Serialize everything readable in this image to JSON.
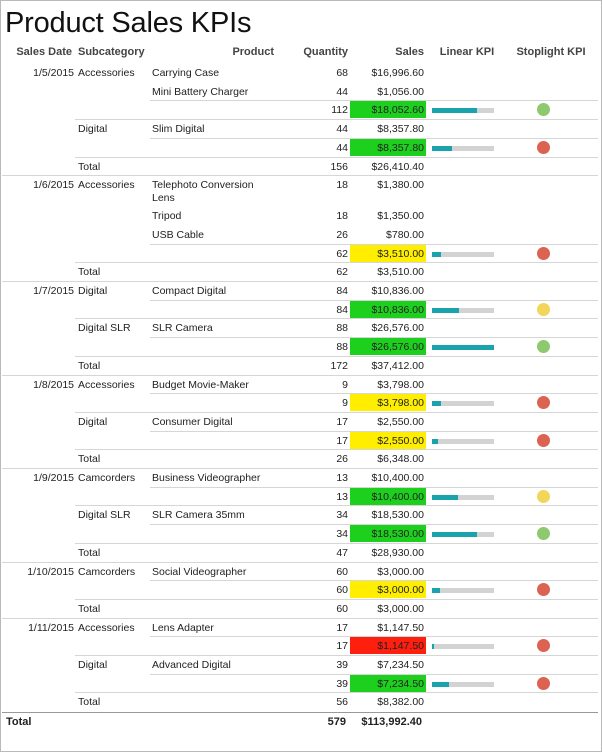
{
  "title": "Product Sales KPIs",
  "headers": {
    "sales_date": "Sales Date",
    "subcategory": "Subcategory",
    "product": "Product",
    "quantity": "Quantity",
    "sales": "Sales",
    "linear_kpi": "Linear KPI",
    "stoplight_kpi": "Stoplight KPI"
  },
  "colors": {
    "kpi_green_bg": "#1ed01e",
    "kpi_yellow_bg": "#ffee00",
    "kpi_red_bg": "#ff1f0f",
    "bar_fill": "#1aa3ad",
    "bar_track": "#d3d3d3",
    "light_green": "#8fc96f",
    "light_yellow": "#f2d65a",
    "light_red": "#dc6352"
  },
  "rows": [
    {
      "type": "product",
      "date": "1/5/2015",
      "subcategory": "Accessories",
      "product": "Carrying Case",
      "quantity": "68",
      "sales": "$16,996.60"
    },
    {
      "type": "product",
      "product": "Mini Battery Charger",
      "quantity": "44",
      "sales": "$1,056.00"
    },
    {
      "type": "subtotal",
      "quantity": "112",
      "sales": "$18,052.60",
      "status": "green",
      "kpi": 0.72,
      "light": "green"
    },
    {
      "type": "product",
      "subcategory": "Digital",
      "product": "Slim Digital",
      "quantity": "44",
      "sales": "$8,357.80"
    },
    {
      "type": "subtotal",
      "quantity": "44",
      "sales": "$8,357.80",
      "status": "green",
      "kpi": 0.33,
      "light": "red"
    },
    {
      "type": "total",
      "label": "Total",
      "quantity": "156",
      "sales": "$26,410.40"
    },
    {
      "type": "product",
      "date": "1/6/2015",
      "subcategory": "Accessories",
      "product": "Telephoto Conversion Lens",
      "quantity": "18",
      "sales": "$1,380.00",
      "tall": true
    },
    {
      "type": "product",
      "product": "Tripod",
      "quantity": "18",
      "sales": "$1,350.00"
    },
    {
      "type": "product",
      "product": "USB Cable",
      "quantity": "26",
      "sales": "$780.00"
    },
    {
      "type": "subtotal",
      "quantity": "62",
      "sales": "$3,510.00",
      "status": "yellow",
      "kpi": 0.14,
      "light": "red"
    },
    {
      "type": "total",
      "label": "Total",
      "quantity": "62",
      "sales": "$3,510.00"
    },
    {
      "type": "product",
      "date": "1/7/2015",
      "subcategory": "Digital",
      "product": "Compact Digital",
      "quantity": "84",
      "sales": "$10,836.00"
    },
    {
      "type": "subtotal",
      "quantity": "84",
      "sales": "$10,836.00",
      "status": "green",
      "kpi": 0.43,
      "light": "yellow"
    },
    {
      "type": "product",
      "subcategory": "Digital SLR",
      "product": "SLR Camera",
      "quantity": "88",
      "sales": "$26,576.00"
    },
    {
      "type": "subtotal",
      "quantity": "88",
      "sales": "$26,576.00",
      "status": "green",
      "kpi": 1.0,
      "light": "green"
    },
    {
      "type": "total",
      "label": "Total",
      "quantity": "172",
      "sales": "$37,412.00"
    },
    {
      "type": "product",
      "date": "1/8/2015",
      "subcategory": "Accessories",
      "product": "Budget Movie-Maker",
      "quantity": "9",
      "sales": "$3,798.00"
    },
    {
      "type": "subtotal",
      "quantity": "9",
      "sales": "$3,798.00",
      "status": "yellow",
      "kpi": 0.15,
      "light": "red"
    },
    {
      "type": "product",
      "subcategory": "Digital",
      "product": "Consumer Digital",
      "quantity": "17",
      "sales": "$2,550.00"
    },
    {
      "type": "subtotal",
      "quantity": "17",
      "sales": "$2,550.00",
      "status": "yellow",
      "kpi": 0.1,
      "light": "red"
    },
    {
      "type": "total",
      "label": "Total",
      "quantity": "26",
      "sales": "$6,348.00"
    },
    {
      "type": "product",
      "date": "1/9/2015",
      "subcategory": "Camcorders",
      "product": "Business Videographer",
      "quantity": "13",
      "sales": "$10,400.00"
    },
    {
      "type": "subtotal",
      "quantity": "13",
      "sales": "$10,400.00",
      "status": "green",
      "kpi": 0.42,
      "light": "yellow"
    },
    {
      "type": "product",
      "subcategory": "Digital SLR",
      "product": "SLR Camera 35mm",
      "quantity": "34",
      "sales": "$18,530.00"
    },
    {
      "type": "subtotal",
      "quantity": "34",
      "sales": "$18,530.00",
      "status": "green",
      "kpi": 0.72,
      "light": "green"
    },
    {
      "type": "total",
      "label": "Total",
      "quantity": "47",
      "sales": "$28,930.00"
    },
    {
      "type": "product",
      "date": "1/10/2015",
      "subcategory": "Camcorders",
      "product": "Social Videographer",
      "quantity": "60",
      "sales": "$3,000.00"
    },
    {
      "type": "subtotal",
      "quantity": "60",
      "sales": "$3,000.00",
      "status": "yellow",
      "kpi": 0.13,
      "light": "red"
    },
    {
      "type": "total",
      "label": "Total",
      "quantity": "60",
      "sales": "$3,000.00"
    },
    {
      "type": "product",
      "date": "1/11/2015",
      "subcategory": "Accessories",
      "product": "Lens Adapter",
      "quantity": "17",
      "sales": "$1,147.50"
    },
    {
      "type": "subtotal",
      "quantity": "17",
      "sales": "$1,147.50",
      "status": "red",
      "kpi": 0.04,
      "light": "red"
    },
    {
      "type": "product",
      "subcategory": "Digital",
      "product": "Advanced Digital",
      "quantity": "39",
      "sales": "$7,234.50"
    },
    {
      "type": "subtotal",
      "quantity": "39",
      "sales": "$7,234.50",
      "status": "green",
      "kpi": 0.28,
      "light": "red"
    },
    {
      "type": "total",
      "label": "Total",
      "quantity": "56",
      "sales": "$8,382.00"
    }
  ],
  "grand_total": {
    "label": "Total",
    "quantity": "579",
    "sales": "$113,992.40"
  }
}
